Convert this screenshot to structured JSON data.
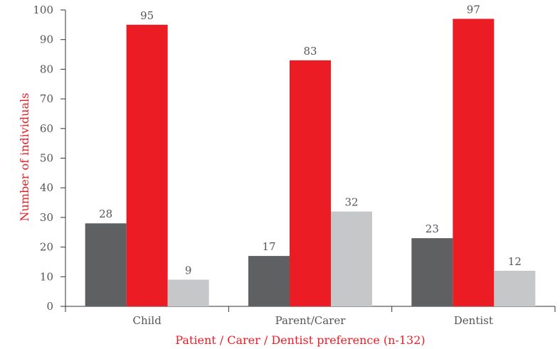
{
  "chart_data": {
    "type": "bar",
    "title": "",
    "xlabel": "Patient / Carer / Dentist preference (n-132)",
    "ylabel": "Number of individuals",
    "ylim": [
      0,
      100
    ],
    "yticks": [
      0,
      10,
      20,
      30,
      40,
      50,
      60,
      70,
      80,
      90,
      100
    ],
    "categories": [
      "Child",
      "Parent/Carer",
      "Dentist"
    ],
    "series": [
      {
        "color": "#5f6062",
        "values": [
          28,
          17,
          23
        ]
      },
      {
        "color": "#ec1c24",
        "values": [
          95,
          83,
          97
        ]
      },
      {
        "color": "#c6c7c9",
        "values": [
          9,
          32,
          12
        ]
      }
    ],
    "grid": false,
    "legend": "none",
    "label_color": "#ec1c24"
  }
}
